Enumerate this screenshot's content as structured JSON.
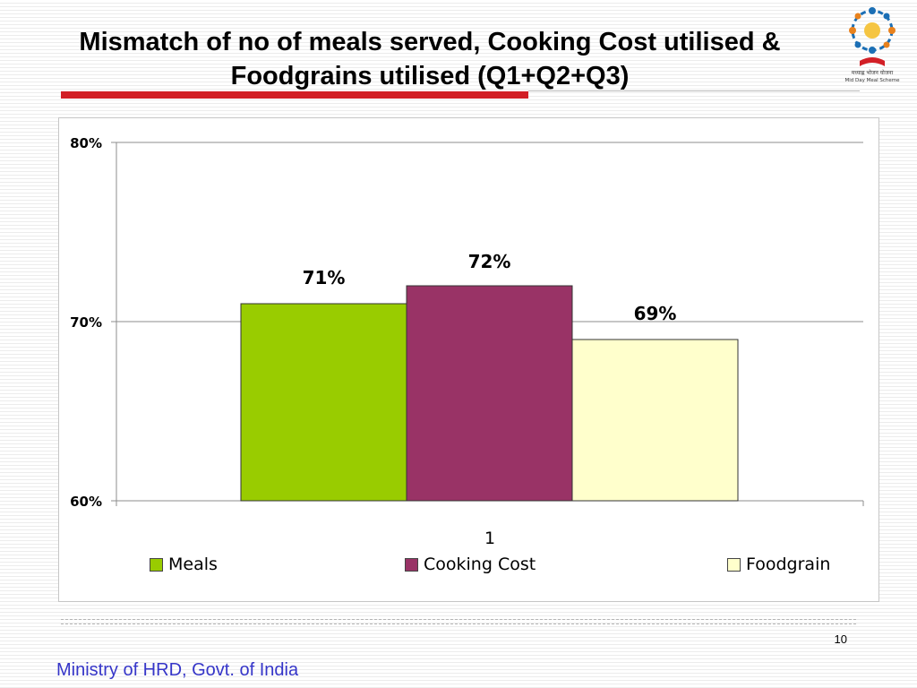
{
  "slide": {
    "title_line1": "Mismatch of no of meals served, Cooking Cost utilised &",
    "title_line2": "Foodgrains utilised (Q1+Q2+Q3)",
    "page_number": "10",
    "footer_text": "Ministry of HRD, Govt. of India",
    "logo_text_1": "मध्याह्न भोजन योजना",
    "logo_text_2": "Mid Day Meal Scheme",
    "accent_color": "#d21f26",
    "footer_color": "#3535c8"
  },
  "chart_data": {
    "type": "bar",
    "categories": [
      "1"
    ],
    "series": [
      {
        "name": "Meals",
        "values": [
          0.71
        ],
        "label": "71%",
        "color": "#99cc00"
      },
      {
        "name": "Cooking Cost",
        "values": [
          0.72
        ],
        "label": "72%",
        "color": "#993366"
      },
      {
        "name": "Foodgrain",
        "values": [
          0.69
        ],
        "label": "69%",
        "color": "#ffffcc"
      }
    ],
    "ylim": [
      0.6,
      0.8
    ],
    "yticks": [
      0.6,
      0.7,
      0.8
    ],
    "ytick_labels": [
      "60%",
      "70%",
      "80%"
    ],
    "grid": true,
    "legend_position": "bottom",
    "title": "",
    "xlabel": "",
    "ylabel": ""
  }
}
